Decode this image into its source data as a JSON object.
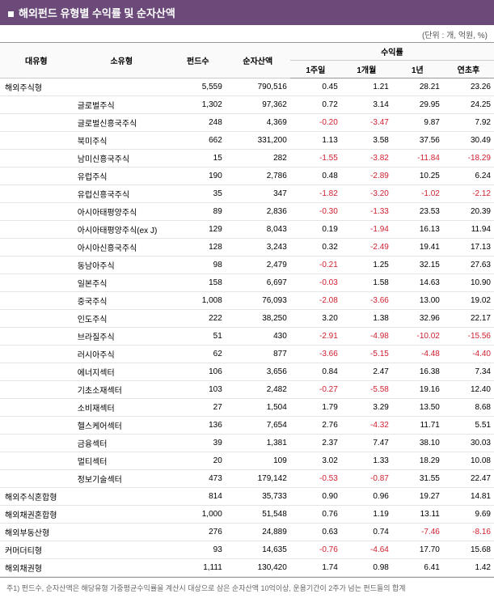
{
  "title": "해외펀드 유형별 수익률 및 순자산액",
  "unit_label": "(단위 : 개, 억원, %)",
  "columns": {
    "major": "대유형",
    "minor": "소유형",
    "count": "펀드수",
    "nav": "순자산액",
    "returns_group": "수익률",
    "r1w": "1주일",
    "r1m": "1개월",
    "r1y": "1년",
    "rytd": "연초후"
  },
  "rows": [
    {
      "major": "해외주식형",
      "minor": "",
      "count": "5,559",
      "nav": "790,516",
      "r1w": "0.45",
      "r1m": "1.21",
      "r1y": "28.21",
      "rytd": "23.26",
      "cat": true
    },
    {
      "major": "",
      "minor": "글로벌주식",
      "count": "1,302",
      "nav": "97,362",
      "r1w": "0.72",
      "r1m": "3.14",
      "r1y": "29.95",
      "rytd": "24.25"
    },
    {
      "major": "",
      "minor": "글로벌신흥국주식",
      "count": "248",
      "nav": "4,369",
      "r1w": "-0.20",
      "r1m": "-3.47",
      "r1y": "9.87",
      "rytd": "7.92"
    },
    {
      "major": "",
      "minor": "북미주식",
      "count": "662",
      "nav": "331,200",
      "r1w": "1.13",
      "r1m": "3.58",
      "r1y": "37.56",
      "rytd": "30.49"
    },
    {
      "major": "",
      "minor": "남미신흥국주식",
      "count": "15",
      "nav": "282",
      "r1w": "-1.55",
      "r1m": "-3.82",
      "r1y": "-11.84",
      "rytd": "-18.29"
    },
    {
      "major": "",
      "minor": "유럽주식",
      "count": "190",
      "nav": "2,786",
      "r1w": "0.48",
      "r1m": "-2.89",
      "r1y": "10.25",
      "rytd": "6.24"
    },
    {
      "major": "",
      "minor": "유럽신흥국주식",
      "count": "35",
      "nav": "347",
      "r1w": "-1.82",
      "r1m": "-3.20",
      "r1y": "-1.02",
      "rytd": "-2.12"
    },
    {
      "major": "",
      "minor": "아시아태평양주식",
      "count": "89",
      "nav": "2,836",
      "r1w": "-0.30",
      "r1m": "-1.33",
      "r1y": "23.53",
      "rytd": "20.39"
    },
    {
      "major": "",
      "minor": "아시아태평양주식(ex J)",
      "count": "129",
      "nav": "8,043",
      "r1w": "0.19",
      "r1m": "-1.94",
      "r1y": "16.13",
      "rytd": "11.94"
    },
    {
      "major": "",
      "minor": "아시아신흥국주식",
      "count": "128",
      "nav": "3,243",
      "r1w": "0.32",
      "r1m": "-2.49",
      "r1y": "19.41",
      "rytd": "17.13"
    },
    {
      "major": "",
      "minor": "동남아주식",
      "count": "98",
      "nav": "2,479",
      "r1w": "-0.21",
      "r1m": "1.25",
      "r1y": "32.15",
      "rytd": "27.63"
    },
    {
      "major": "",
      "minor": "일본주식",
      "count": "158",
      "nav": "6,697",
      "r1w": "-0.03",
      "r1m": "1.58",
      "r1y": "14.63",
      "rytd": "10.90"
    },
    {
      "major": "",
      "minor": "중국주식",
      "count": "1,008",
      "nav": "76,093",
      "r1w": "-2.08",
      "r1m": "-3.66",
      "r1y": "13.00",
      "rytd": "19.02"
    },
    {
      "major": "",
      "minor": "인도주식",
      "count": "222",
      "nav": "38,250",
      "r1w": "3.20",
      "r1m": "1.38",
      "r1y": "32.96",
      "rytd": "22.17"
    },
    {
      "major": "",
      "minor": "브라질주식",
      "count": "51",
      "nav": "430",
      "r1w": "-2.91",
      "r1m": "-4.98",
      "r1y": "-10.02",
      "rytd": "-15.56"
    },
    {
      "major": "",
      "minor": "러시아주식",
      "count": "62",
      "nav": "877",
      "r1w": "-3.66",
      "r1m": "-5.15",
      "r1y": "-4.48",
      "rytd": "-4.40"
    },
    {
      "major": "",
      "minor": "에너지섹터",
      "count": "106",
      "nav": "3,656",
      "r1w": "0.84",
      "r1m": "2.47",
      "r1y": "16.38",
      "rytd": "7.34"
    },
    {
      "major": "",
      "minor": "기초소재섹터",
      "count": "103",
      "nav": "2,482",
      "r1w": "-0.27",
      "r1m": "-5.58",
      "r1y": "19.16",
      "rytd": "12.40"
    },
    {
      "major": "",
      "minor": "소비재섹터",
      "count": "27",
      "nav": "1,504",
      "r1w": "1.79",
      "r1m": "3.29",
      "r1y": "13.50",
      "rytd": "8.68"
    },
    {
      "major": "",
      "minor": "헬스케어섹터",
      "count": "136",
      "nav": "7,654",
      "r1w": "2.76",
      "r1m": "-4.32",
      "r1y": "11.71",
      "rytd": "5.51"
    },
    {
      "major": "",
      "minor": "금융섹터",
      "count": "39",
      "nav": "1,381",
      "r1w": "2.37",
      "r1m": "7.47",
      "r1y": "38.10",
      "rytd": "30.03"
    },
    {
      "major": "",
      "minor": "멀티섹터",
      "count": "20",
      "nav": "109",
      "r1w": "3.02",
      "r1m": "1.33",
      "r1y": "18.29",
      "rytd": "10.08"
    },
    {
      "major": "",
      "minor": "정보기술섹터",
      "count": "473",
      "nav": "179,142",
      "r1w": "-0.53",
      "r1m": "-0.87",
      "r1y": "31.55",
      "rytd": "22.47"
    },
    {
      "major": "해외주식혼합형",
      "minor": "",
      "count": "814",
      "nav": "35,733",
      "r1w": "0.90",
      "r1m": "0.96",
      "r1y": "19.27",
      "rytd": "14.81",
      "cat": true
    },
    {
      "major": "해외채권혼합형",
      "minor": "",
      "count": "1,000",
      "nav": "51,548",
      "r1w": "0.76",
      "r1m": "1.19",
      "r1y": "13.11",
      "rytd": "9.69",
      "cat": true
    },
    {
      "major": "해외부동산형",
      "minor": "",
      "count": "276",
      "nav": "24,889",
      "r1w": "0.63",
      "r1m": "0.74",
      "r1y": "-7.46",
      "rytd": "-8.16",
      "cat": true
    },
    {
      "major": "커머더티형",
      "minor": "",
      "count": "93",
      "nav": "14,635",
      "r1w": "-0.76",
      "r1m": "-4.64",
      "r1y": "17.70",
      "rytd": "15.68",
      "cat": true
    },
    {
      "major": "해외채권형",
      "minor": "",
      "count": "1,111",
      "nav": "130,420",
      "r1w": "1.74",
      "r1m": "0.98",
      "r1y": "6.41",
      "rytd": "1.42",
      "cat": true
    }
  ],
  "footnote": "주1) 펀드수, 순자산액은 해당유형 가중평균수익률을 계산시 대상으로 삼은 순자산액 10억이상, 운용기간이 2주가 넘는 펀드들의 합계",
  "colors": {
    "title_bg": "#6b4a7a",
    "title_fg": "#ffffff",
    "negative": "#d02030",
    "border": "#999999",
    "row_border": "#e5e5e5"
  }
}
